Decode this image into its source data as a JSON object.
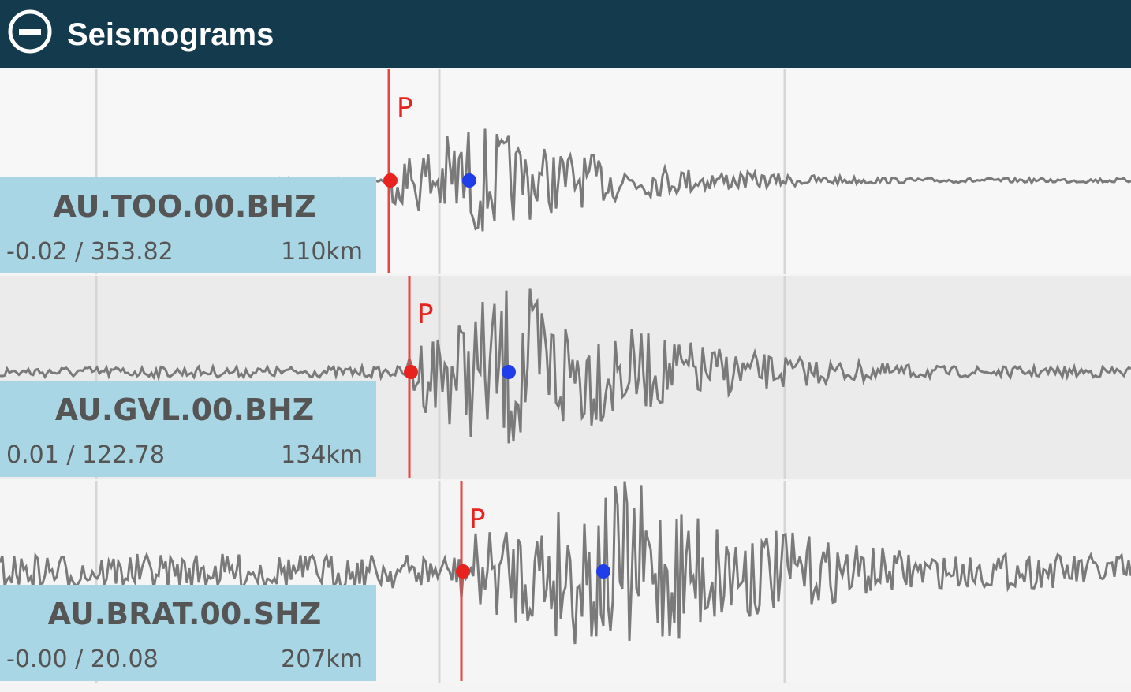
{
  "header": {
    "title": "Seismograms"
  },
  "seismograms": [
    {
      "station": "AU.TOO.00.BHZ",
      "range": "-0.02 / 353.82",
      "distance": "110km",
      "phase": "P"
    },
    {
      "station": "AU.GVL.00.BHZ",
      "range": "0.01 / 122.78",
      "distance": "134km",
      "phase": "P"
    },
    {
      "station": "AU.BRAT.00.SHZ",
      "range": "-0.00 / 20.08",
      "distance": "207km",
      "phase": "P"
    }
  ]
}
